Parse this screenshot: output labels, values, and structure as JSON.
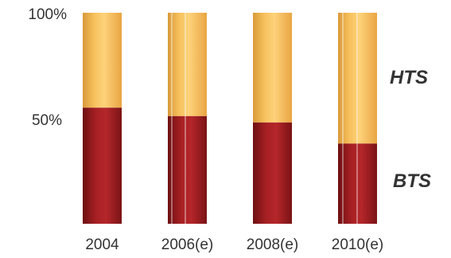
{
  "chart_data": {
    "type": "bar",
    "stacked": true,
    "percent": true,
    "categories": [
      "2004",
      "2006(e)",
      "2008(e)",
      "2010(e)"
    ],
    "series": [
      {
        "name": "BTS",
        "values": [
          55,
          51,
          48,
          38
        ],
        "color": "#9e1c1e"
      },
      {
        "name": "HTS",
        "values": [
          45,
          49,
          52,
          62
        ],
        "color": "#f5b550"
      }
    ],
    "yticks": [
      "100%",
      "50%"
    ],
    "ylim": [
      0,
      100
    ],
    "grid": false,
    "legend": "series names placed to the right of the bars (HTS upper, BTS lower)"
  }
}
